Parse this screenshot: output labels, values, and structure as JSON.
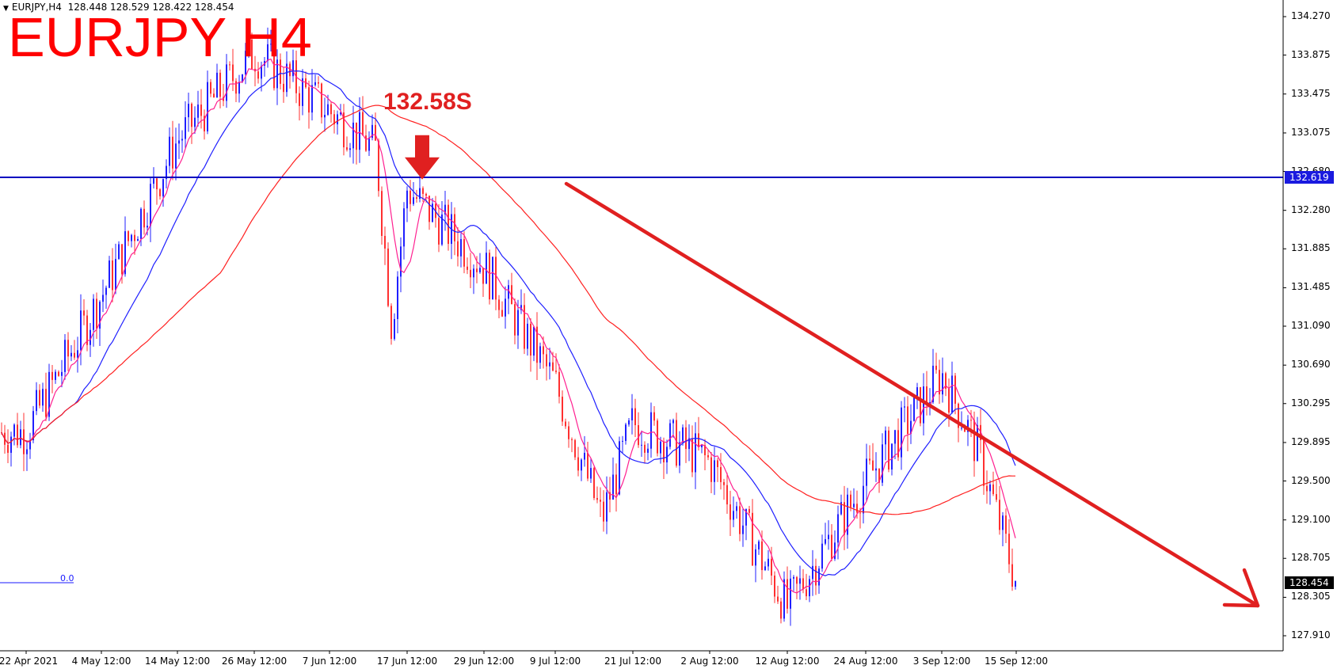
{
  "header": {
    "symbol": "EURJPY,H4",
    "ohlc": "128.448 128.529 128.422 128.454",
    "big_title": "EURJPY H4"
  },
  "annotation": {
    "text": "132.58S"
  },
  "chart_data": {
    "type": "candlestick",
    "symbol": "EURJPY",
    "timeframe": "H4",
    "title": "EURJPY H4",
    "ylim": [
      127.7,
      134.4
    ],
    "y_ticks": [
      "134.270",
      "133.875",
      "133.475",
      "133.075",
      "132.680",
      "132.280",
      "131.885",
      "131.485",
      "131.090",
      "130.690",
      "130.295",
      "129.895",
      "129.500",
      "129.100",
      "128.705",
      "128.305",
      "127.910"
    ],
    "x_ticks": [
      "22 Apr 2021",
      "4 May 12:00",
      "14 May 12:00",
      "26 May 12:00",
      "7 Jun 12:00",
      "17 Jun 12:00",
      "29 Jun 12:00",
      "9 Jul 12:00",
      "21 Jul 12:00",
      "2 Aug 12:00",
      "12 Aug 12:00",
      "24 Aug 12:00",
      "3 Sep 12:00",
      "15 Sep 12:00"
    ],
    "current_price": "128.454",
    "horizontal_line": {
      "value": 132.619,
      "label": "132.619"
    },
    "marker": {
      "label": "132.58S",
      "value": 132.58,
      "x_label": "17 Jun 12:00"
    },
    "indicator_label": "0.0",
    "price_path": [
      [
        "22 Apr 2021",
        130.0
      ],
      [
        "4 May 12:00",
        131.4
      ],
      [
        "14 May 12:00",
        133.0
      ],
      [
        "26 May 12:00",
        133.9
      ],
      [
        "7 Jun 12:00",
        133.3
      ],
      [
        "12 Jun",
        132.9
      ],
      [
        "14 Jun",
        131.1
      ],
      [
        "17 Jun 12:00",
        132.5
      ],
      [
        "29 Jun 12:00",
        131.7
      ],
      [
        "9 Jul 12:00",
        130.5
      ],
      [
        "15 Jul",
        129.1
      ],
      [
        "21 Jul 12:00",
        130.1
      ],
      [
        "2 Aug 12:00",
        129.7
      ],
      [
        "12 Aug 12:00",
        128.2
      ],
      [
        "24 Aug 12:00",
        129.5
      ],
      [
        "3 Sep 12:00",
        130.6
      ],
      [
        "8 Sep",
        129.8
      ],
      [
        "15 Sep 12:00",
        128.454
      ]
    ],
    "trend_line": {
      "from": [
        "17 Jun 12:00",
        132.6
      ],
      "to": [
        "after 15 Sep 12:00",
        128.2
      ],
      "color": "#e02020"
    },
    "series_colors": {
      "candle_up": "#1f1fff",
      "candle_down": "#ff3030",
      "ma_fast": "#ff2090",
      "ma_mid": "#1f1fff",
      "ma_slow": "#ff2020",
      "hline": "#0000c0"
    },
    "grid": false
  }
}
